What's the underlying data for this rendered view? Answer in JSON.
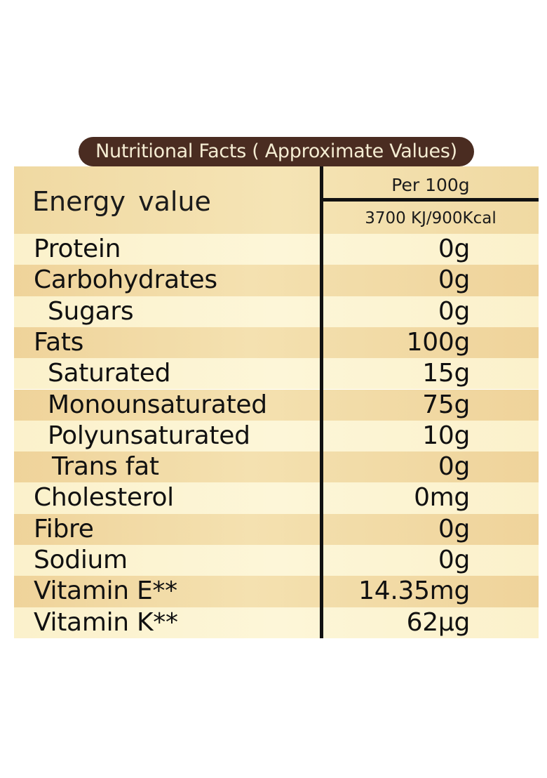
{
  "title": "Nutritional Facts ( Approximate Values)",
  "header": {
    "energy_label": "Energy value",
    "per_label": "Per 100g",
    "energy_value": "3700 KJ/900Kcal"
  },
  "rows": [
    {
      "name": "Protein",
      "value": "0g"
    },
    {
      "name": "Carbohydrates",
      "value": "0g"
    },
    {
      "name": "Sugars",
      "value": "0g"
    },
    {
      "name": "Fats",
      "value": "100g"
    },
    {
      "name": "Saturated",
      "value": "15g"
    },
    {
      "name": "Monounsaturated",
      "value": "75g"
    },
    {
      "name": "Polyunsaturated",
      "value": "10g"
    },
    {
      "name": "Trans fat",
      "value": "0g"
    },
    {
      "name": "Cholesterol",
      "value": "0mg"
    },
    {
      "name": "Fibre",
      "value": "0g"
    },
    {
      "name": "Sodium",
      "value": "0g"
    },
    {
      "name": "Vitamin E**",
      "value": "14.35mg"
    },
    {
      "name": "Vitamin K**",
      "value": "62µg"
    }
  ],
  "colors": {
    "title_bg": "#4a2c21",
    "title_text": "#f4ecd2",
    "row_dark": "#efd39a",
    "row_light": "#fbf1cb",
    "divider": "#111111"
  }
}
